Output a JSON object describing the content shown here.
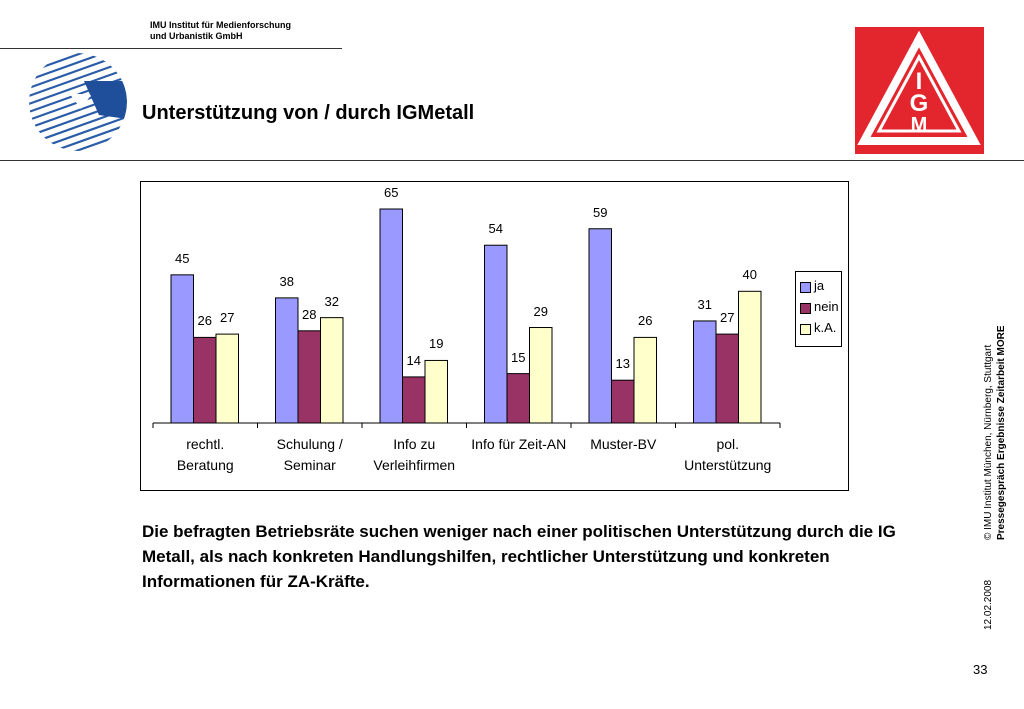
{
  "header": {
    "institute_line1": "IMU Institut für Medienforschung",
    "institute_line2": "und Urbanistik GmbH",
    "title": "Unterstützung von / durch IGMetall"
  },
  "logo": {
    "text": "IGM"
  },
  "chart_data": {
    "type": "bar",
    "categories": [
      [
        "rechtl.",
        "Beratung"
      ],
      [
        "Schulung /",
        "Seminar"
      ],
      [
        "Info zu",
        "Verleihfirmen"
      ],
      [
        "Info für Zeit-AN",
        ""
      ],
      [
        "Muster-BV",
        ""
      ],
      [
        "pol.",
        "Unterstützung"
      ]
    ],
    "series": [
      {
        "name": "ja",
        "values": [
          45,
          38,
          65,
          54,
          59,
          31
        ],
        "color": "#9999ff"
      },
      {
        "name": "nein",
        "values": [
          26,
          28,
          14,
          15,
          13,
          27
        ],
        "color": "#993366"
      },
      {
        "name": "k.A.",
        "values": [
          27,
          32,
          19,
          29,
          26,
          40
        ],
        "color": "#ffffcc"
      }
    ],
    "ylim": [
      0,
      72
    ],
    "legend": "right",
    "grid": false
  },
  "body_text": "Die befragten Betriebsräte suchen weniger nach einer politischen Unterstützung durch die IG Metall, als nach konkreten Handlungshilfen, rechtlicher Unterstützung und konkreten Informationen für ZA-Kräfte.",
  "footer": {
    "copyright": "© IMU Institut München, Nürnberg, Stuttgart",
    "presentation": "Pressegespräch Ergebnisse Zeitarbeit MORE",
    "date": "12.02.2008",
    "page_number": "33"
  }
}
